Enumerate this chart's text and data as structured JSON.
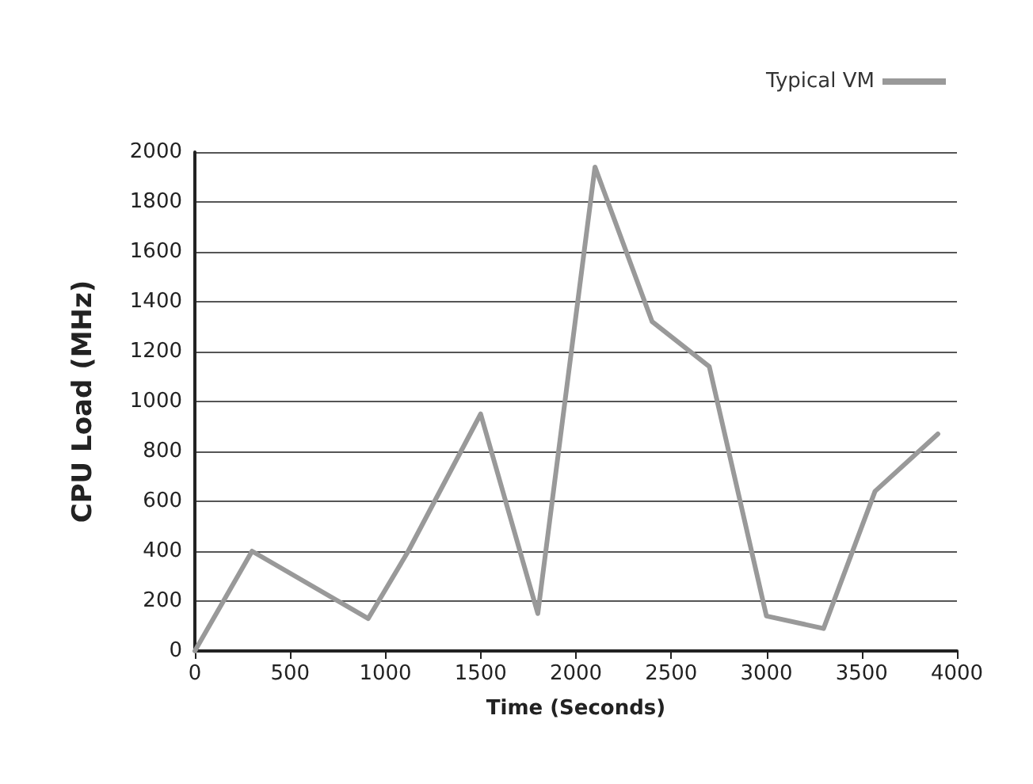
{
  "chart_data": {
    "type": "line",
    "xlabel": "Time (Seconds)",
    "ylabel": "CPU Load (MHz)",
    "x": [
      0,
      300,
      910,
      1120,
      1500,
      1800,
      2100,
      2400,
      2700,
      3000,
      3300,
      3570,
      3900
    ],
    "series": [
      {
        "name": "Typical VM",
        "color": "#999999",
        "values": [
          0,
          400,
          130,
          400,
          950,
          150,
          1940,
          1320,
          1140,
          140,
          90,
          640,
          870
        ]
      }
    ],
    "xlim": [
      0,
      4000
    ],
    "xticks": [
      0,
      500,
      1000,
      1500,
      2000,
      2500,
      3000,
      3500,
      4000
    ],
    "ylim": [
      0,
      2000
    ],
    "yticks": [
      0,
      200,
      400,
      600,
      800,
      1000,
      1200,
      1400,
      1600,
      1800,
      2000
    ],
    "grid": "y",
    "legend": "top right",
    "marker": "none",
    "line_style": "solid"
  }
}
